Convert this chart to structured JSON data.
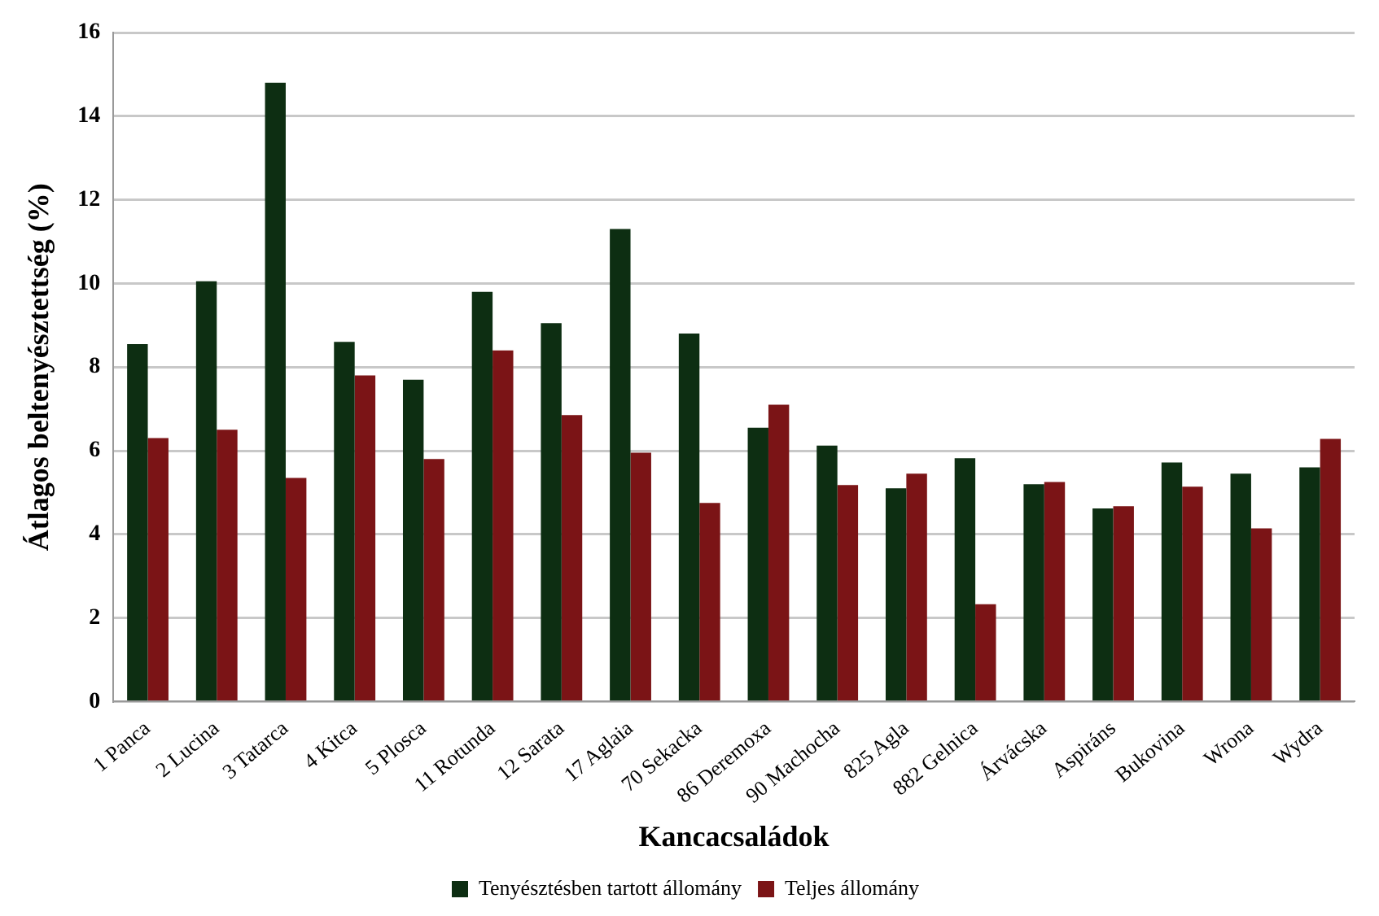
{
  "chart_data": {
    "type": "bar",
    "xlabel": "Kancacsaládok",
    "ylabel": "Átlagos beltenyésztettség (%)",
    "categories": [
      "1 Panca",
      "2 Lucina",
      "3 Tatarca",
      "4 Kitca",
      "5 Plosca",
      "11 Rotunda",
      "12 Sarata",
      "17 Aglaia",
      "70 Sekacka",
      "86 Deremoxa",
      "90 Machocha",
      "825 Agla",
      "882 Gelnica",
      "Árvácska",
      "Aspiráns",
      "Bukovina",
      "Wrona",
      "Wydra"
    ],
    "series": [
      {
        "name": "Tenyésztésben tartott állomány",
        "color": "#0d2e12",
        "values": [
          8.55,
          10.05,
          14.8,
          8.6,
          7.7,
          9.8,
          9.05,
          11.3,
          8.8,
          6.55,
          6.12,
          5.1,
          5.82,
          5.2,
          4.62,
          5.72,
          5.45,
          5.6
        ]
      },
      {
        "name": "Teljes állomány",
        "color": "#7b1416",
        "values": [
          6.3,
          6.5,
          5.35,
          7.8,
          5.8,
          8.4,
          6.85,
          5.95,
          4.75,
          7.1,
          5.18,
          5.45,
          2.33,
          5.25,
          4.67,
          5.14,
          4.14,
          6.28
        ]
      }
    ],
    "ylim": [
      0,
      16
    ],
    "yticks": [
      0,
      2,
      4,
      6,
      8,
      10,
      12,
      14,
      16
    ],
    "grid": "y",
    "legend": "bottom"
  }
}
